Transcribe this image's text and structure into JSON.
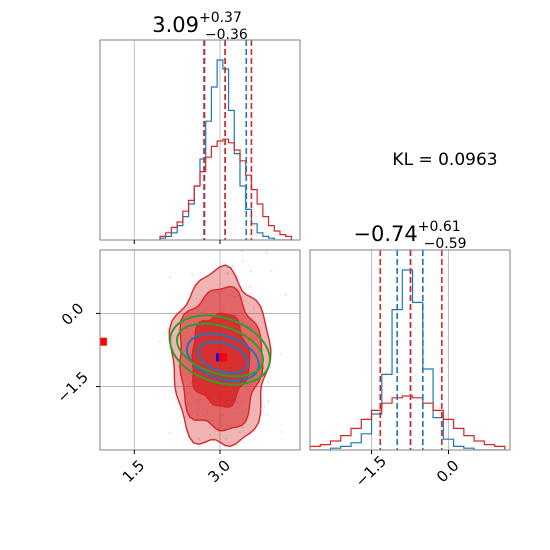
{
  "chart_data": [
    {
      "type": "histogram",
      "panel": "marginal-x",
      "title": {
        "value": "3.09",
        "sup": "+0.37",
        "sub": "−0.36"
      },
      "xlim": [
        0.9,
        4.4
      ],
      "grid": true,
      "bins_x": [
        2.0,
        2.1,
        2.2,
        2.3,
        2.4,
        2.5,
        2.6,
        2.7,
        2.8,
        2.9,
        3.0,
        3.1,
        3.2,
        3.3,
        3.4,
        3.5,
        3.6,
        3.7,
        3.8,
        3.9,
        4.0,
        4.1,
        4.2
      ],
      "series": [
        {
          "color": "#1f77b4",
          "values": [
            0.01,
            0.02,
            0.04,
            0.08,
            0.13,
            0.2,
            0.3,
            0.45,
            0.66,
            0.85,
            1.0,
            0.95,
            0.72,
            0.48,
            0.3,
            0.17,
            0.09,
            0.04,
            0.02,
            0.01,
            0.0,
            0.0,
            0.0
          ]
        },
        {
          "color": "#d62728",
          "values": [
            0.02,
            0.04,
            0.07,
            0.1,
            0.16,
            0.22,
            0.3,
            0.38,
            0.46,
            0.52,
            0.55,
            0.56,
            0.54,
            0.5,
            0.44,
            0.36,
            0.28,
            0.2,
            0.13,
            0.08,
            0.05,
            0.03,
            0.02
          ]
        }
      ],
      "quantiles": [
        {
          "color": "#1f77b4",
          "x": [
            2.73,
            3.09,
            3.46
          ]
        },
        {
          "color": "#d62728",
          "x": [
            2.72,
            3.09,
            3.55
          ]
        }
      ]
    },
    {
      "type": "histogram",
      "panel": "marginal-y",
      "title": {
        "value": "−0.74",
        "sup": "+0.61",
        "sub": "−0.59"
      },
      "xlim": [
        -2.7,
        1.2
      ],
      "grid": true,
      "bins_x": [
        -2.6,
        -2.4,
        -2.2,
        -2.0,
        -1.8,
        -1.6,
        -1.4,
        -1.2,
        -1.0,
        -0.8,
        -0.6,
        -0.4,
        -0.2,
        0.0,
        0.2,
        0.4,
        0.6,
        0.8,
        1.0
      ],
      "series": [
        {
          "color": "#1f77b4",
          "values": [
            0.0,
            0.0,
            0.01,
            0.02,
            0.04,
            0.09,
            0.2,
            0.42,
            0.78,
            1.0,
            0.82,
            0.45,
            0.18,
            0.06,
            0.02,
            0.01,
            0.0,
            0.0,
            0.0
          ]
        },
        {
          "color": "#d62728",
          "values": [
            0.02,
            0.03,
            0.05,
            0.08,
            0.12,
            0.17,
            0.22,
            0.26,
            0.29,
            0.3,
            0.29,
            0.26,
            0.22,
            0.17,
            0.12,
            0.08,
            0.05,
            0.03,
            0.02
          ]
        }
      ],
      "quantiles": [
        {
          "color": "#1f77b4",
          "x": [
            -1.0,
            -0.74,
            -0.5
          ]
        },
        {
          "color": "#d62728",
          "x": [
            -1.33,
            -0.74,
            -0.13
          ]
        }
      ]
    },
    {
      "type": "contour",
      "panel": "joint",
      "xlim": [
        0.9,
        4.4
      ],
      "ylim": [
        -2.8,
        1.3
      ],
      "grid": true,
      "xticks": [
        1.5,
        3.0
      ],
      "xtick_labels": [
        "1.5",
        "3.0"
      ],
      "yticks": [
        0.0,
        -1.5
      ],
      "ytick_labels": [
        "0.0",
        "−1.5"
      ],
      "filled_contours": {
        "color": "#d62728",
        "center": [
          3.0,
          -0.95
        ],
        "levels": [
          {
            "sx": 0.85,
            "sy": 1.8,
            "opacity": 0.35
          },
          {
            "sx": 0.72,
            "sy": 1.45,
            "opacity": 0.55
          },
          {
            "sx": 0.5,
            "sy": 0.95,
            "opacity": 0.85
          }
        ]
      },
      "line_contours": [
        {
          "color": "#1f77b4",
          "center": [
            3.05,
            -0.9
          ],
          "rx": 0.65,
          "ry": 0.2,
          "angle_deg": -18
        },
        {
          "color": "#1f77b4",
          "center": [
            3.05,
            -0.9
          ],
          "rx": 0.45,
          "ry": 0.13,
          "angle_deg": -18
        },
        {
          "color": "#2ca02c",
          "center": [
            3.0,
            -0.75
          ],
          "rx": 0.9,
          "ry": 0.3,
          "angle_deg": -18
        },
        {
          "color": "#2ca02c",
          "center": [
            3.0,
            -0.75
          ],
          "rx": 0.78,
          "ry": 0.22,
          "angle_deg": -18
        }
      ],
      "markers": [
        {
          "color": "#0000ff",
          "x": 3.0,
          "y": -0.9
        },
        {
          "color": "#ff0000",
          "x": 3.05,
          "y": -0.9
        },
        {
          "color": "#ff0000",
          "x": 0.95,
          "y": -0.58
        }
      ]
    }
  ],
  "kl": {
    "text": "KL = 0.0963"
  }
}
